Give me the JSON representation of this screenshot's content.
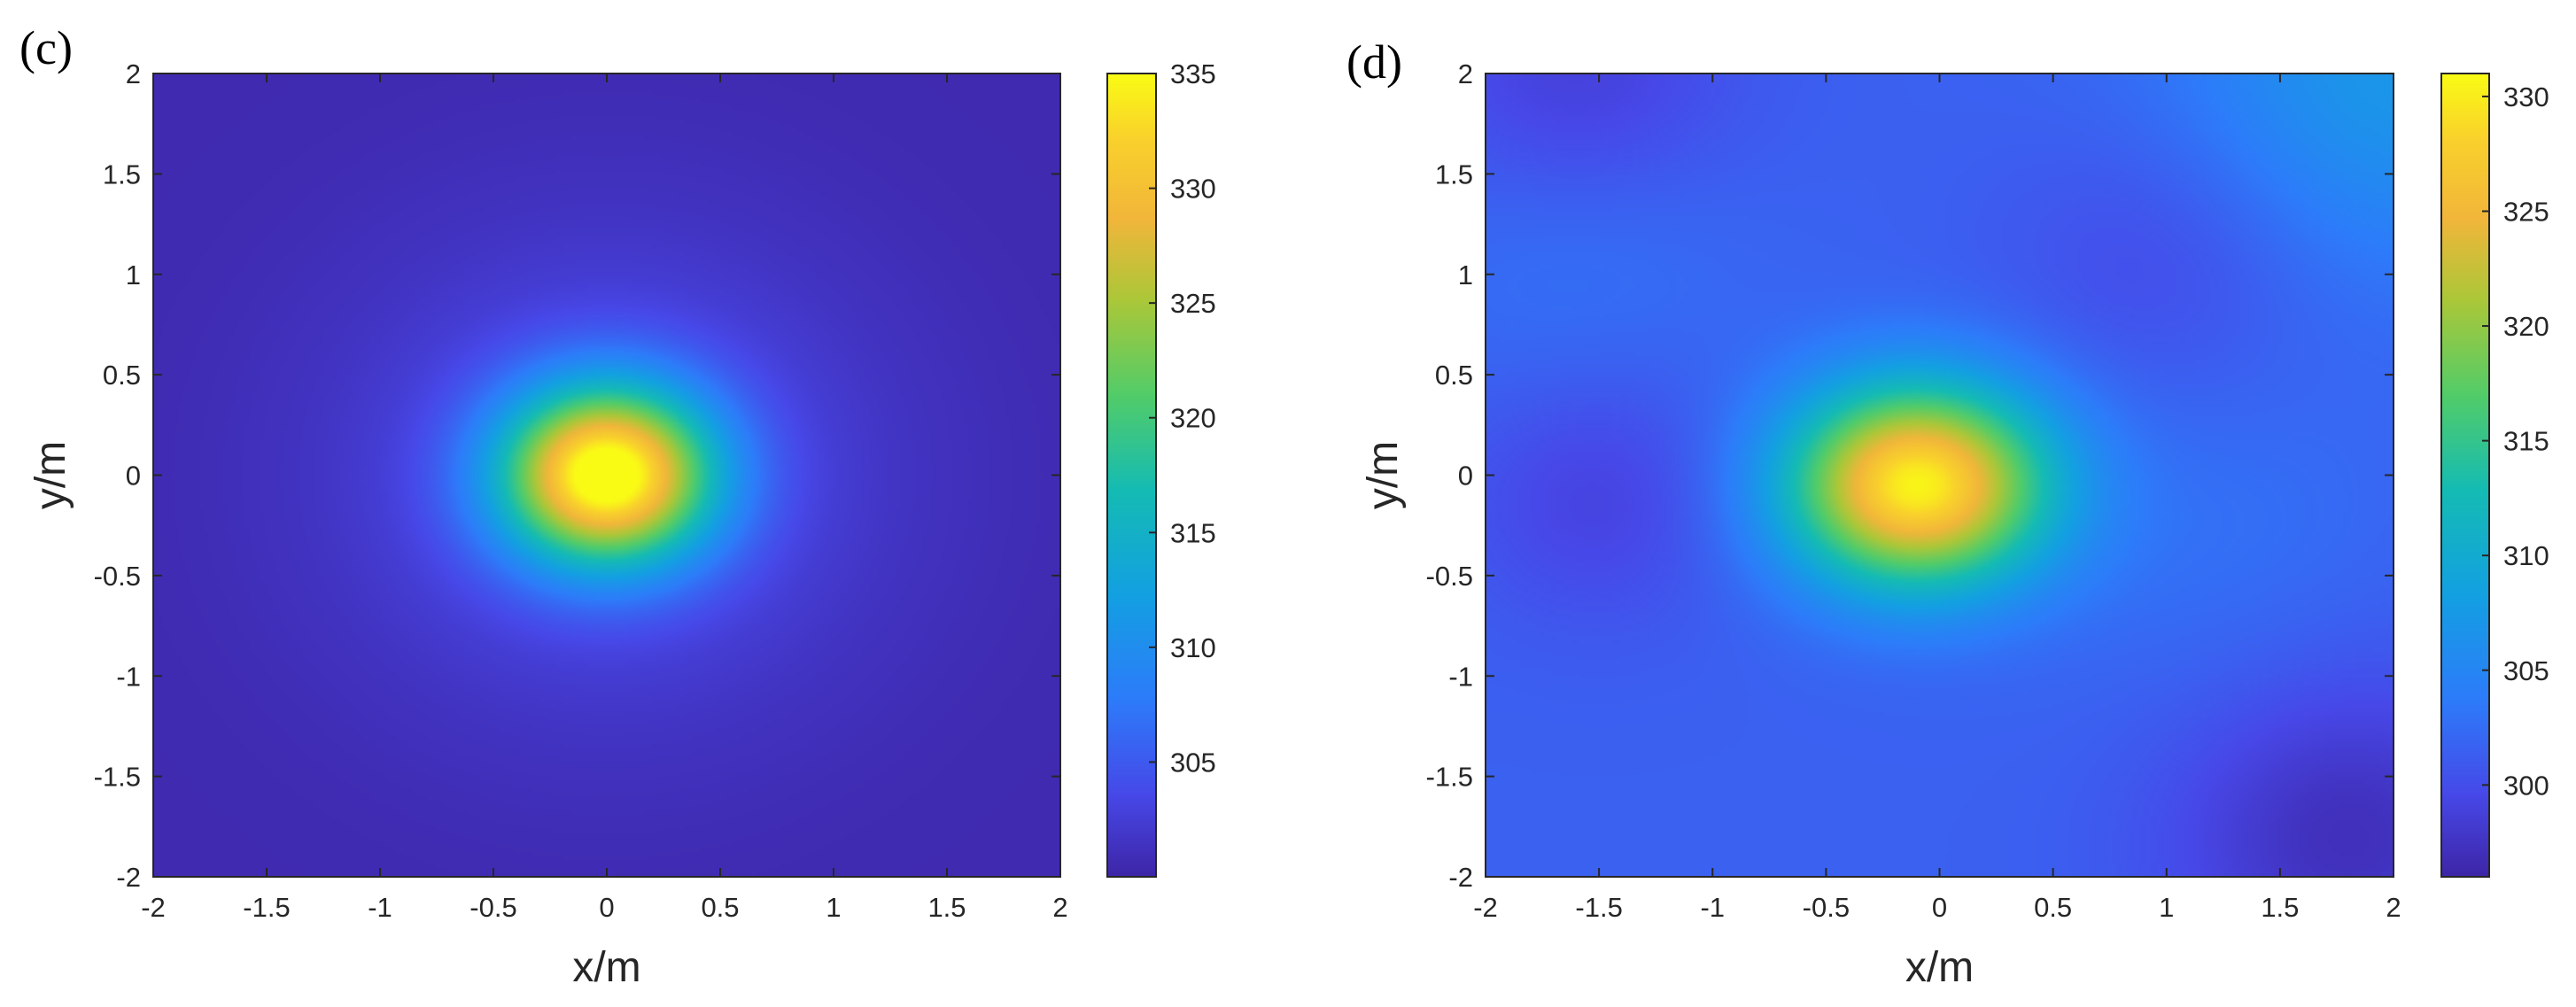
{
  "chart_data": [
    {
      "type": "heatmap",
      "panel_label": "(c)",
      "xlabel": "x/m",
      "ylabel": "y/m",
      "xlim": [
        -2,
        2
      ],
      "ylim": [
        -2,
        2
      ],
      "x_ticks": [
        -2,
        -1.5,
        -1,
        -0.5,
        0,
        0.5,
        1,
        1.5,
        2
      ],
      "y_ticks": [
        2,
        1.5,
        1,
        0.5,
        0,
        -0.5,
        -1,
        -1.5,
        -2
      ],
      "colorbar": {
        "min": 300,
        "max": 335,
        "ticks": [
          305,
          310,
          315,
          320,
          325,
          330,
          335
        ]
      },
      "field": {
        "background": 300.4,
        "peak": 334.5,
        "center": [
          0,
          0
        ],
        "sigma": [
          0.33,
          0.31
        ],
        "halo_amplitude": 3.5,
        "halo_sigma": 0.85
      },
      "colormap": "parula"
    },
    {
      "type": "heatmap",
      "panel_label": "(d)",
      "xlabel": "x/m",
      "ylabel": "y/m",
      "xlim": [
        -2,
        2
      ],
      "ylim": [
        -2,
        2
      ],
      "x_ticks": [
        -2,
        -1.5,
        -1,
        -0.5,
        0,
        0.5,
        1,
        1.5,
        2
      ],
      "y_ticks": [
        2,
        1.5,
        1,
        0.5,
        0,
        -0.5,
        -1,
        -1.5,
        -2
      ],
      "colorbar": {
        "min": 296,
        "max": 331,
        "ticks": [
          300,
          305,
          310,
          315,
          320,
          325,
          330
        ]
      },
      "field": {
        "background": 301.5,
        "peak": 330.5,
        "center": [
          -0.1,
          -0.05
        ],
        "sigma": [
          0.4,
          0.35
        ],
        "halo_amplitude": 0,
        "halo_sigma": 1,
        "bumps": [
          {
            "x": 2.0,
            "y": 2.0,
            "amp": 5.5,
            "s": 0.7
          },
          {
            "x": 1.8,
            "y": -1.8,
            "amp": -4.5,
            "s": 0.55
          },
          {
            "x": -1.5,
            "y": -0.1,
            "amp": -2.5,
            "s": 0.45
          },
          {
            "x": -1.6,
            "y": 1.95,
            "amp": -3.0,
            "s": 0.5
          },
          {
            "x": 1.0,
            "y": 1.1,
            "amp": -2.0,
            "s": 0.5
          },
          {
            "x": -1.6,
            "y": 1.1,
            "amp": 1.5,
            "s": 0.55
          },
          {
            "x": 1.2,
            "y": -0.3,
            "amp": 1.2,
            "s": 0.6
          }
        ]
      },
      "colormap": "parula"
    }
  ]
}
